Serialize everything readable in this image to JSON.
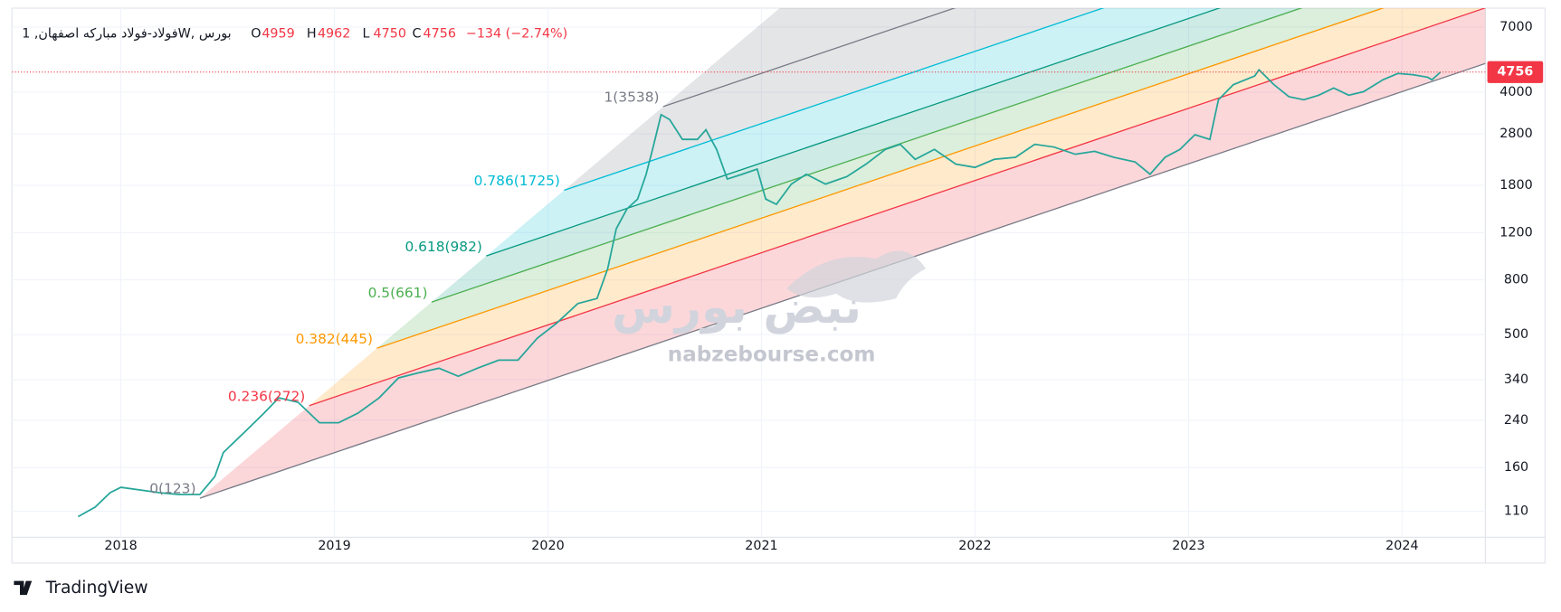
{
  "header": {
    "symbol": "فولاد-فولاد مبارکه اصفهان, 1W, بورس",
    "ohlc": [
      {
        "label": "O",
        "value": 4959
      },
      {
        "label": "H",
        "value": 4962
      },
      {
        "label": "L",
        "value": 4750
      },
      {
        "label": "C",
        "value": 4756
      }
    ],
    "change": "−134 (−2.74%)"
  },
  "chart_data": {
    "type": "line",
    "color": "#26a69a",
    "x": [
      2017.8,
      2017.88,
      2017.95,
      2018.0,
      2018.09,
      2018.18,
      2018.27,
      2018.37,
      2018.44,
      2018.48,
      2018.58,
      2018.67,
      2018.74,
      2018.83,
      2018.93,
      2019.02,
      2019.11,
      2019.21,
      2019.3,
      2019.39,
      2019.49,
      2019.58,
      2019.67,
      2019.77,
      2019.86,
      2019.95,
      2020.04,
      2020.14,
      2020.23,
      2020.28,
      2020.32,
      2020.37,
      2020.42,
      2020.46,
      2020.49,
      2020.53,
      2020.57,
      2020.63,
      2020.7,
      2020.74,
      2020.79,
      2020.84,
      2020.91,
      2020.98,
      2021.02,
      2021.07,
      2021.14,
      2021.21,
      2021.3,
      2021.4,
      2021.49,
      2021.58,
      2021.65,
      2021.72,
      2021.81,
      2021.91,
      2022.0,
      2022.09,
      2022.19,
      2022.28,
      2022.37,
      2022.47,
      2022.56,
      2022.65,
      2022.75,
      2022.82,
      2022.89,
      2022.96,
      2023.03,
      2023.1,
      2023.14,
      2023.21,
      2023.31,
      2023.33,
      2023.4,
      2023.47,
      2023.54,
      2023.61,
      2023.68,
      2023.75,
      2023.82,
      2023.91,
      2023.98,
      2024.05,
      2024.12,
      2024.14,
      2024.18
    ],
    "values": [
      105,
      114,
      129,
      135,
      132,
      129,
      127,
      127,
      148,
      182,
      217,
      255,
      291,
      280,
      235,
      235,
      255,
      291,
      345,
      360,
      375,
      350,
      375,
      402,
      402,
      485,
      551,
      653,
      682,
      881,
      1240,
      1470,
      1600,
      1980,
      2450,
      3300,
      3165,
      2670,
      2670,
      2900,
      2450,
      1900,
      1980,
      2070,
      1600,
      1530,
      1820,
      1980,
      1820,
      1940,
      2160,
      2450,
      2560,
      2250,
      2450,
      2160,
      2100,
      2250,
      2290,
      2560,
      2500,
      2350,
      2410,
      2290,
      2200,
      1980,
      2290,
      2450,
      2780,
      2670,
      3750,
      4270,
      4600,
      4850,
      4270,
      3850,
      3750,
      3900,
      4150,
      3900,
      4020,
      4450,
      4700,
      4650,
      4550,
      4450,
      4756
    ],
    "xlim": [
      2017.49,
      2024.39
    ],
    "xticks": [
      2018,
      2019,
      2020,
      2021,
      2022,
      2023,
      2024
    ],
    "ylim": [
      88,
      8230
    ],
    "yticks": [
      110,
      160,
      240,
      340,
      500,
      800,
      1200,
      1800,
      2800,
      4000,
      7000
    ],
    "log_scale": true,
    "grid": true,
    "fib_channel": {
      "levels": [
        {
          "level": 0,
          "price": 123,
          "label": "0(123)",
          "color": "#787b86"
        },
        {
          "level": 0.236,
          "price": 272,
          "label": "0.236(272)",
          "color": "#f23645"
        },
        {
          "level": 0.382,
          "price": 445,
          "label": "0.382(445)",
          "color": "#ff9800"
        },
        {
          "level": 0.5,
          "price": 661,
          "label": "0.5(661)",
          "color": "#4caf50"
        },
        {
          "level": 0.618,
          "price": 982,
          "label": "0.618(982)",
          "color": "#089981"
        },
        {
          "level": 0.786,
          "price": 1725,
          "label": "0.786(1725)",
          "color": "#00bcd4"
        },
        {
          "level": 1,
          "price": 3538,
          "label": "1(3538)",
          "color": "#787b86"
        }
      ]
    }
  },
  "watermark": {
    "logo": "نبض بورس",
    "site": "nabzebourse.com"
  },
  "footer": {
    "brand": "TradingView"
  }
}
